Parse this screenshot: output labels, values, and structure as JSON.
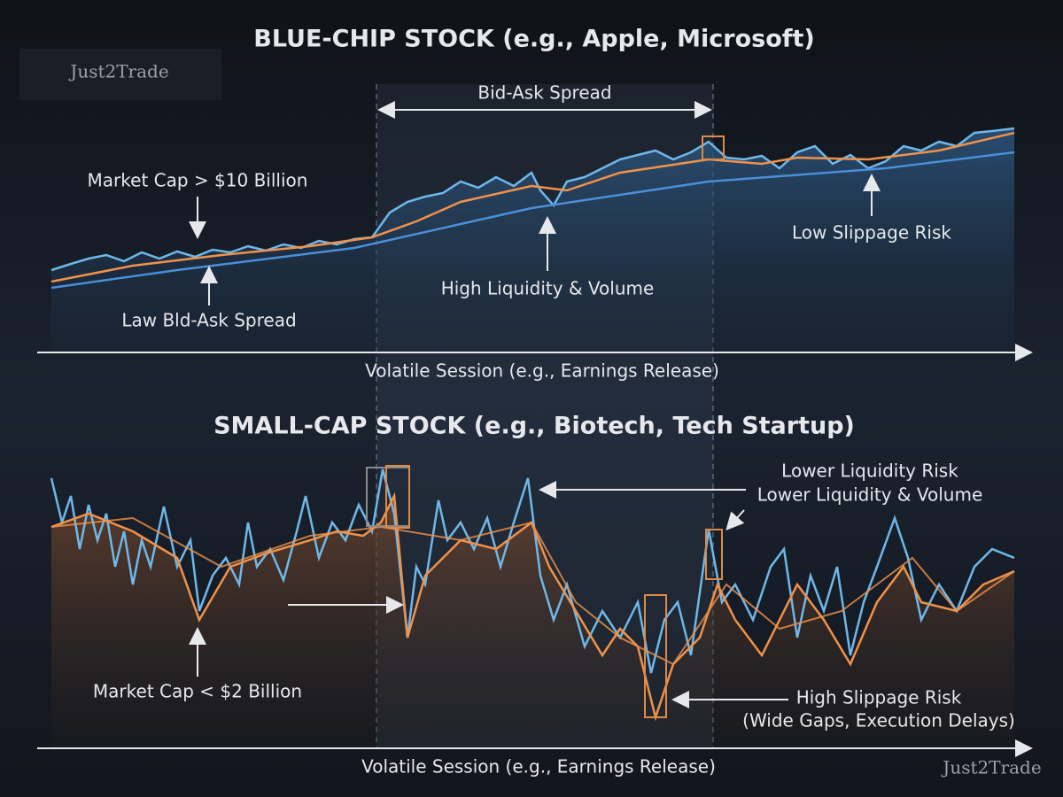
{
  "watermark_top": "Just2Trade",
  "watermark_bottom": "Just2Trade",
  "top_panel": {
    "title": "BLUE-CHIP STOCK (e.g., Apple, Microsoft)",
    "spread_label": "Bid-Ask Spread",
    "market_cap": "Market Cap > $10 Billion",
    "low_spread": "Law Bld-Ask Spread",
    "liquidity": "High Liquidity & Volume",
    "slippage": "Low Slippage Risk",
    "axis_label": "Volatile Session (e.g., Earnings Release)"
  },
  "bottom_panel": {
    "title": "SMALL-CAP STOCK (e.g., Biotech, Tech Startup)",
    "liquidity_risk": "Lower Liquidity Risk",
    "liquidity_volume": "Lower Liquidity & Volume",
    "market_cap": "Market Cap < $2 Billion",
    "slippage": "High Slippage Risk",
    "slippage_detail": "(Wide Gaps, Execution Delays)",
    "axis_label": "Volatile Session (e.g., Earnings Release)"
  }
}
